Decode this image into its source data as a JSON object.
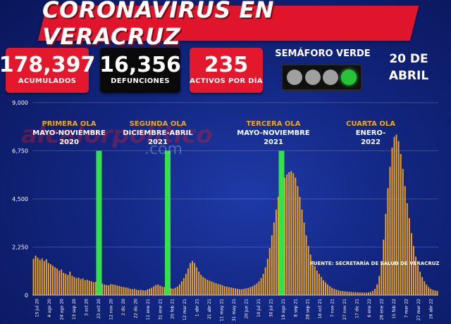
{
  "header": {
    "title": "CORONAVIRUS EN VERACRUZ"
  },
  "stats": [
    {
      "value": "178,397",
      "label": "ACUMULADOS",
      "color": "#e3182c"
    },
    {
      "value": "16,356",
      "label": "DEFUNCIONES",
      "color": "#0a0a0a"
    },
    {
      "value": "235",
      "label": "ACTIVOS POR DÍA",
      "color": "#e3182c"
    }
  ],
  "semaforo": {
    "title": "SEMÁFORO VERDE",
    "active_color": "green",
    "lights": [
      "off",
      "off",
      "off",
      "on"
    ]
  },
  "date": {
    "line1": "20 DE",
    "line2": "ABRIL"
  },
  "waves": [
    {
      "title": "PRIMERA OLA",
      "line1": "MAYO-NOVIEMBRE",
      "line2": "2020"
    },
    {
      "title": "SEGUNDA OLA",
      "line1": "DICIEMBRE-ABRIL",
      "line2": "2021"
    },
    {
      "title": "TERCERA OLA",
      "line1": "MAYO-NOVIEMBRE",
      "line2": "2021"
    },
    {
      "title": "CUARTA OLA",
      "line1": "ENERO-",
      "line2": "2022"
    }
  ],
  "watermark": {
    "text": "alcalorpolitico",
    "suffix": ".com"
  },
  "source": "FUENTE: SECRETARÍA DE SALUD DE VERACRUZ",
  "colors": {
    "background": "#0c1a63",
    "bars": "#f2a617",
    "wave_markers": "#35e04a",
    "accent_red": "#e3182c"
  },
  "chart_data": {
    "type": "bar",
    "ylim": [
      0,
      9000
    ],
    "yticks": [
      "0",
      "2,250",
      "4,500",
      "6,750",
      "9,000"
    ],
    "ytick_values": [
      0,
      2250,
      4500,
      6750,
      9000
    ],
    "xlabel": "",
    "ylabel": "",
    "title": "",
    "xtick_labels": [
      "15 jul 20",
      "4 ago 20",
      "24 ago 20",
      "13 sep 20",
      "3 oct 20",
      "23 oct 20",
      "12 nov 20",
      "2 dic 20",
      "22 dic 20",
      "11 ene 21",
      "31 ene 21",
      "20 feb 21",
      "12 mar 21",
      "1 abr 21",
      "21 abr 21",
      "11 may 21",
      "31 may 21",
      "20 jun 21",
      "10 jul 21",
      "30 jul 21",
      "19 ago 21",
      "8 sep 21",
      "28 sep 21",
      "18 oct 21",
      "7 nov 21",
      "27 nov 21",
      "17 dic 21",
      "6 ene 22",
      "26 ene 22",
      "15 feb 22",
      "7 mar 22",
      "27 mar 22",
      "16 abr 22"
    ],
    "wave_marker_indices": [
      31,
      63,
      116
    ],
    "values": [
      1700,
      1850,
      1750,
      1650,
      1720,
      1600,
      1680,
      1500,
      1450,
      1380,
      1300,
      1250,
      1150,
      1200,
      1050,
      1000,
      950,
      1100,
      900,
      850,
      800,
      820,
      750,
      780,
      700,
      720,
      680,
      650,
      600,
      620,
      580,
      560,
      540,
      500,
      480,
      460,
      520,
      500,
      480,
      450,
      430,
      400,
      380,
      360,
      350,
      300,
      280,
      300,
      260,
      240,
      250,
      230,
      220,
      260,
      300,
      350,
      420,
      480,
      500,
      450,
      400,
      380,
      360,
      340,
      320,
      300,
      350,
      400,
      500,
      650,
      800,
      1000,
      1250,
      1500,
      1600,
      1500,
      1300,
      1100,
      950,
      850,
      780,
      720,
      680,
      640,
      600,
      560,
      520,
      500,
      460,
      420,
      400,
      380,
      360,
      340,
      320,
      300,
      280,
      280,
      300,
      320,
      340,
      380,
      420,
      480,
      550,
      650,
      800,
      1000,
      1300,
      1700,
      2200,
      2800,
      3400,
      4000,
      4600,
      5000,
      5300,
      5500,
      5650,
      5750,
      5800,
      5700,
      5500,
      5100,
      4600,
      4000,
      3400,
      2800,
      2300,
      1900,
      1600,
      1350,
      1150,
      1000,
      850,
      700,
      600,
      500,
      420,
      350,
      300,
      260,
      230,
      200,
      190,
      180,
      170,
      160,
      150,
      145,
      140,
      135,
      130,
      125,
      120,
      120,
      130,
      150,
      200,
      300,
      500,
      900,
      1600,
      2600,
      3800,
      5000,
      6000,
      6900,
      7400,
      7500,
      7200,
      6600,
      5900,
      5100,
      4300,
      3600,
      2900,
      2300,
      1800,
      1400,
      1100,
      850,
      650,
      500,
      380,
      300,
      250,
      220,
      200
    ]
  }
}
